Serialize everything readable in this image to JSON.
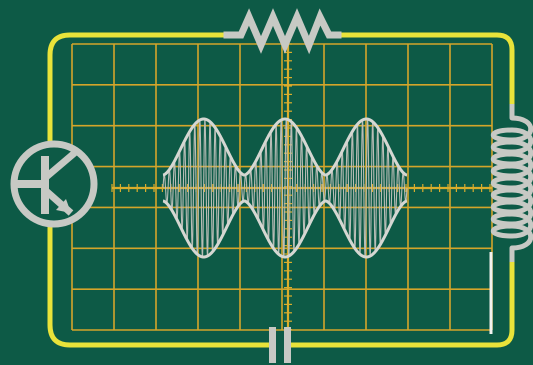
{
  "diagram": {
    "description_free": true,
    "colors": {
      "background": "#0d5a46",
      "grid": "#d4a52a",
      "axis": "#d9ad2c",
      "circuit_wire": "#e9e33a",
      "components": "#c7c9c4",
      "waveform": "#d5d7d2",
      "waveform_fill": "#b9bdb7"
    },
    "components": {
      "resistor": "resistor-symbol",
      "capacitor": "capacitor-symbol",
      "inductor": "inductor-symbol",
      "transistor": "transistor-symbol"
    },
    "signal": {
      "type": "amplitude-modulated sine",
      "envelope_lobes": 3,
      "carrier_cycles": 48
    }
  }
}
